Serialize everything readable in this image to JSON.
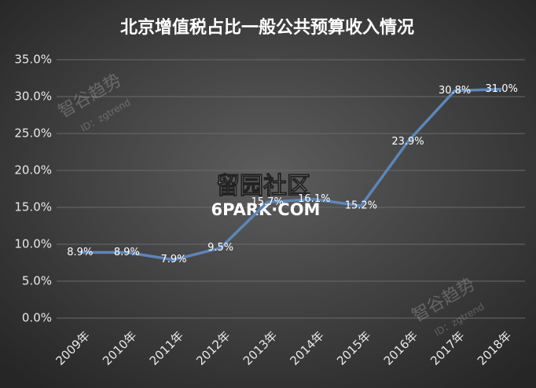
{
  "chart_data": {
    "type": "line",
    "title": "北京增值税占比一般公共预算收入情况",
    "categories": [
      "2009年",
      "2010年",
      "2011年",
      "2012年",
      "2013年",
      "2014年",
      "2015年",
      "2016年",
      "2017年",
      "2018年"
    ],
    "values": [
      8.9,
      8.9,
      7.9,
      9.5,
      15.7,
      16.1,
      15.2,
      23.9,
      30.8,
      31.0
    ],
    "value_labels": [
      "8.9%",
      "8.9%",
      "7.9%",
      "9.5%",
      "15.7%",
      "16.1%",
      "15.2%",
      "23.9%",
      "30.8%",
      "31.0%"
    ],
    "color": "#5b86bd",
    "ylim": [
      0,
      35
    ],
    "yticks": [
      {
        "value": 0,
        "label": "0.0%"
      },
      {
        "value": 5,
        "label": "5.0%"
      },
      {
        "value": 10,
        "label": "10.0%"
      },
      {
        "value": 15,
        "label": "15.0%"
      },
      {
        "value": 20,
        "label": "20.0%"
      },
      {
        "value": 25,
        "label": "25.0%"
      },
      {
        "value": 30,
        "label": "30.0%"
      },
      {
        "value": 35,
        "label": "35.0%"
      }
    ],
    "grid": true
  },
  "watermarks": {
    "brand": "智谷趋势",
    "id": "ID：zgtrend",
    "site": "留园社区",
    "site_url": "6PARK·COM"
  }
}
